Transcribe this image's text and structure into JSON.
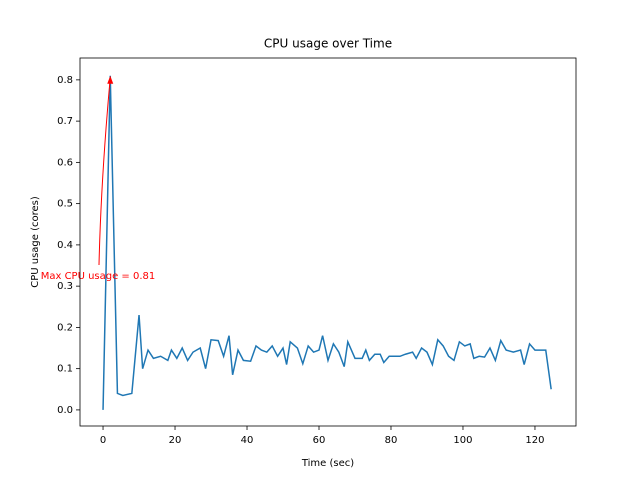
{
  "chart_data": {
    "type": "line",
    "title": "CPU usage over Time",
    "x_label": "Time (sec)",
    "y_label": "CPU usage (cores)",
    "annotation": "Max CPU usage = 0.81",
    "color": "#1f77b4",
    "x": [
      0,
      2,
      4,
      5.5,
      8,
      10,
      11,
      12.5,
      14,
      16,
      18,
      19,
      20.5,
      22,
      23.5,
      25,
      27,
      28.5,
      30,
      32,
      33.5,
      35,
      36,
      37.5,
      39,
      41,
      42.5,
      44,
      45.5,
      47,
      48.5,
      50,
      51,
      52,
      54,
      55.5,
      57,
      58.5,
      60,
      61,
      62.5,
      64,
      65.5,
      67,
      68,
      70,
      72,
      73,
      74,
      75.5,
      77,
      78,
      79.5,
      81,
      82.5,
      84,
      86,
      87,
      88.5,
      90,
      91.5,
      93,
      94.5,
      96,
      97.5,
      99,
      100.5,
      102,
      103,
      104.5,
      106,
      107.5,
      109,
      110.5,
      112,
      114,
      116,
      117,
      118.5,
      120,
      121.5,
      123,
      124.5
    ],
    "values": [
      0.0,
      0.81,
      0.04,
      0.035,
      0.04,
      0.23,
      0.1,
      0.145,
      0.125,
      0.13,
      0.12,
      0.145,
      0.125,
      0.15,
      0.12,
      0.14,
      0.15,
      0.1,
      0.17,
      0.168,
      0.13,
      0.18,
      0.085,
      0.145,
      0.12,
      0.118,
      0.155,
      0.145,
      0.14,
      0.155,
      0.13,
      0.15,
      0.11,
      0.165,
      0.15,
      0.112,
      0.155,
      0.14,
      0.145,
      0.18,
      0.12,
      0.16,
      0.14,
      0.105,
      0.165,
      0.125,
      0.125,
      0.145,
      0.12,
      0.135,
      0.135,
      0.115,
      0.13,
      0.13,
      0.13,
      0.135,
      0.14,
      0.125,
      0.15,
      0.14,
      0.11,
      0.17,
      0.155,
      0.13,
      0.12,
      0.165,
      0.155,
      0.16,
      0.125,
      0.13,
      0.128,
      0.15,
      0.12,
      0.168,
      0.145,
      0.14,
      0.145,
      0.11,
      0.16,
      0.145,
      0.145,
      0.145,
      0.05
    ],
    "xlim": [
      -6.4,
      131.4
    ],
    "ylim": [
      -0.039,
      0.853
    ],
    "xticks": [
      0,
      20,
      40,
      60,
      80,
      100,
      120
    ],
    "yticks": [
      {
        "value": 0,
        "label": "0.0"
      },
      0.1,
      0.2,
      0.3,
      0.4,
      0.5,
      0.6,
      0.7,
      0.8
    ]
  }
}
